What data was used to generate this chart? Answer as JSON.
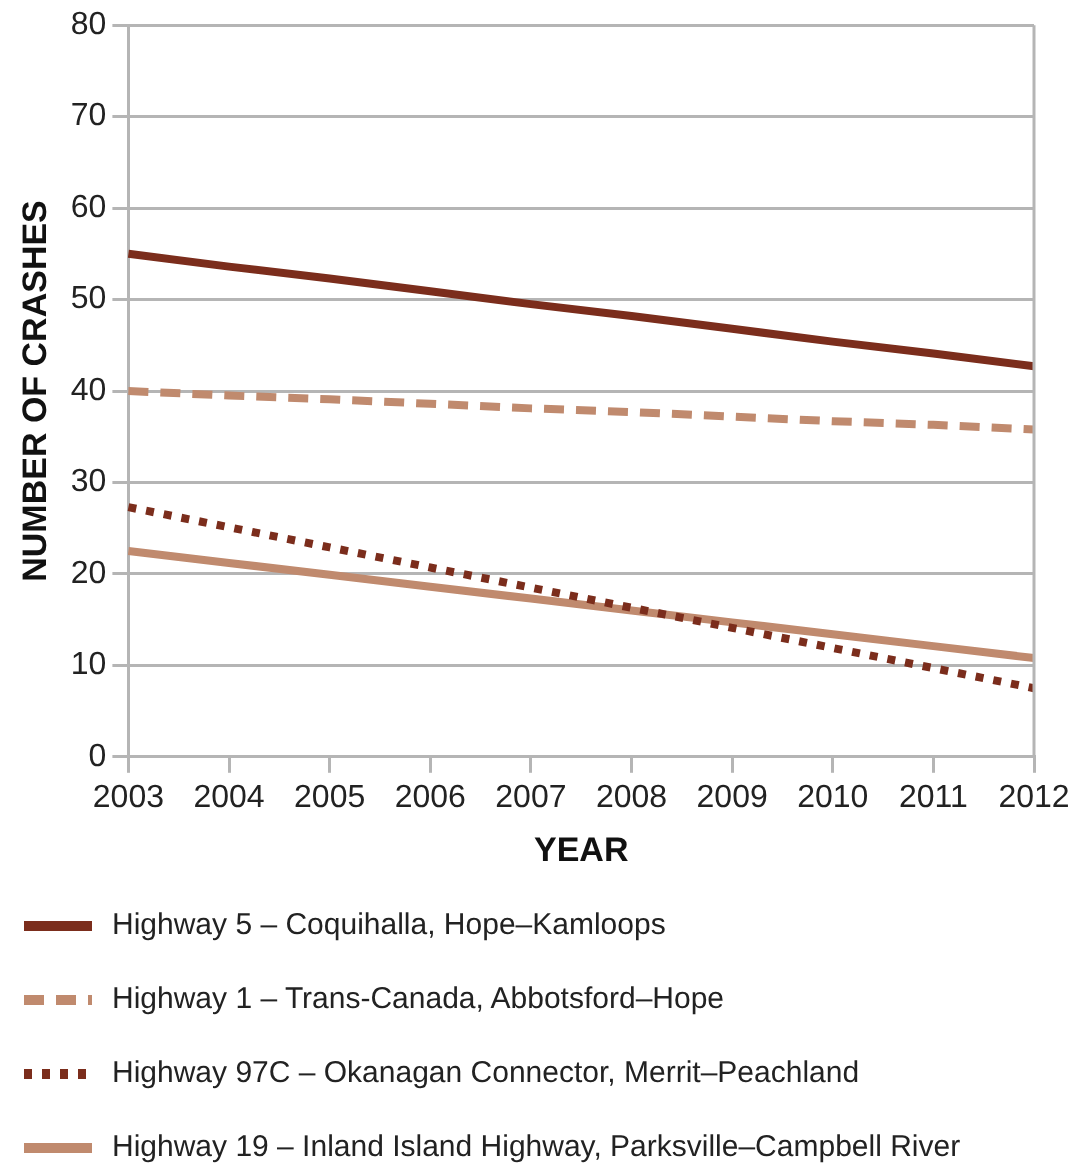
{
  "chart_data": {
    "type": "line",
    "xlabel": "YEAR",
    "ylabel": "NUMBER OF CRASHES",
    "categories": [
      "2003",
      "2004",
      "2005",
      "2006",
      "2007",
      "2008",
      "2009",
      "2010",
      "2011",
      "2012"
    ],
    "ylim": [
      0,
      80
    ],
    "yticks": [
      0,
      10,
      20,
      30,
      40,
      50,
      60,
      70,
      80
    ],
    "grid": "y",
    "legend": "bottom",
    "marker": "none",
    "series": [
      {
        "name": "Highway 5 – Coquihalla, Hope–Kamloops",
        "color": "#7b2d1c",
        "line_style": "solid",
        "values": [
          55,
          53.6,
          52.3,
          50.9,
          49.5,
          48.2,
          46.8,
          45.4,
          44.1,
          42.7
        ]
      },
      {
        "name": "Highway 1 – Trans-Canada, Abbotsford–Hope",
        "color": "#c08a6e",
        "line_style": "dashed",
        "values": [
          40,
          39.5,
          39.1,
          38.6,
          38.1,
          37.7,
          37.2,
          36.7,
          36.3,
          35.8
        ]
      },
      {
        "name": "Highway 97C – Okanagan Connector, Merrit–Peachland",
        "color": "#7b2d1c",
        "line_style": "dotted",
        "values": [
          27.3,
          25.1,
          22.9,
          20.7,
          18.5,
          16.3,
          14.1,
          11.9,
          9.7,
          7.5
        ]
      },
      {
        "name": "Highway 19 – Inland Island Highway, Parksville–Campbell River",
        "color": "#c08a6e",
        "line_style": "solid",
        "values": [
          22.5,
          21.2,
          19.9,
          18.6,
          17.3,
          16,
          14.7,
          13.4,
          12.1,
          10.8
        ]
      }
    ]
  }
}
